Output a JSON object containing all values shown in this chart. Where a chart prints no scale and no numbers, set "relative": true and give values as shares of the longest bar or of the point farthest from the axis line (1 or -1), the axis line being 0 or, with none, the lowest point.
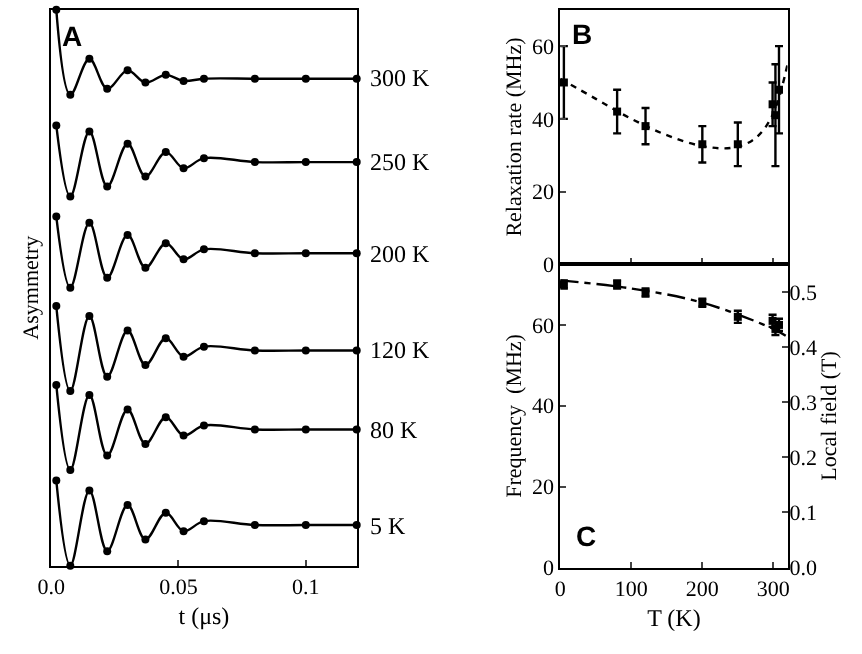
{
  "chart_data": [
    {
      "type": "line",
      "relative": true,
      "xlabel": "t (μs)",
      "ylabel": "Asymmetry",
      "annotations": [
        "A"
      ],
      "xlim": [
        0,
        0.12
      ],
      "xticks": [
        {
          "value": 0,
          "label": "0.0"
        },
        0.05,
        0.1
      ],
      "tick_labels": "x",
      "marker": "circle",
      "grid": false,
      "x": [
        0.002,
        0.0075,
        0.015,
        0.022,
        0.03,
        0.037,
        0.045,
        0.052,
        0.06,
        0.08,
        0.1,
        0.12
      ],
      "series": [
        {
          "name": "300 K",
          "color": "#000000",
          "values": [
            1.0,
            0.847,
            0.912,
            0.858,
            0.891,
            0.869,
            0.883,
            0.872,
            0.876,
            0.876,
            0.876,
            0.876
          ]
        },
        {
          "name": "250 K",
          "color": "#000000",
          "values": [
            0.792,
            0.664,
            0.781,
            0.682,
            0.759,
            0.7,
            0.744,
            0.715,
            0.733,
            0.726,
            0.726,
            0.726
          ]
        },
        {
          "name": "200 K",
          "color": "#000000",
          "values": [
            0.628,
            0.5,
            0.617,
            0.518,
            0.595,
            0.536,
            0.58,
            0.551,
            0.569,
            0.562,
            0.562,
            0.562
          ]
        },
        {
          "name": "120 K",
          "color": "#000000",
          "values": [
            0.467,
            0.314,
            0.449,
            0.34,
            0.423,
            0.361,
            0.409,
            0.376,
            0.394,
            0.387,
            0.387,
            0.387
          ]
        },
        {
          "name": "80 K",
          "color": "#000000",
          "values": [
            0.325,
            0.172,
            0.307,
            0.198,
            0.281,
            0.219,
            0.267,
            0.234,
            0.252,
            0.245,
            0.245,
            0.245
          ]
        },
        {
          "name": "5 K",
          "color": "#000000",
          "values": [
            0.153,
            0.0,
            0.135,
            0.026,
            0.109,
            0.047,
            0.095,
            0.062,
            0.08,
            0.073,
            0.073,
            0.073
          ]
        }
      ]
    },
    {
      "type": "scatter",
      "ylabel": "Relaxation rate (MHz)",
      "annotations": [
        "B"
      ],
      "xlim": [
        0,
        320
      ],
      "ylim": [
        0,
        70
      ],
      "yticks": [
        0,
        20,
        40,
        60
      ],
      "tick_labels": "y",
      "marker": "square",
      "grid": false,
      "series": [
        {
          "type": "scatter",
          "color": "#000000",
          "x": [
            5,
            80,
            120,
            200,
            250,
            299,
            303,
            308
          ],
          "values": [
            50,
            42,
            38,
            33,
            33,
            44,
            41,
            48
          ],
          "errors": [
            10,
            6,
            5,
            5,
            6,
            6,
            14,
            12
          ]
        },
        {
          "type": "line",
          "line_style": "dotted",
          "marker": "none",
          "color": "#000000",
          "x": [
            0,
            50,
            100,
            150,
            200,
            240,
            270,
            290,
            305,
            320
          ],
          "values": [
            51,
            45.5,
            40,
            35.5,
            32.5,
            32,
            34,
            38,
            44,
            55
          ]
        }
      ]
    },
    {
      "type": "scatter",
      "xlabel": "T (K)",
      "ylabel": "Frequency  (MHz)",
      "y2label": "Local field (T)",
      "annotations": [
        "C"
      ],
      "xlim": [
        0,
        320
      ],
      "xticks": [
        0,
        100,
        200,
        300
      ],
      "ylim": [
        0,
        75
      ],
      "yticks": [
        0,
        20,
        40,
        60
      ],
      "y2lim": [
        0,
        0.55
      ],
      "y2ticks": [
        {
          "value": 0,
          "label": "0.0"
        },
        0.1,
        0.2,
        0.3,
        0.4,
        0.5
      ],
      "marker": "square",
      "grid": false,
      "series": [
        {
          "type": "scatter",
          "color": "#000000",
          "x": [
            5,
            80,
            120,
            200,
            250,
            299,
            303,
            308
          ],
          "values": [
            70,
            70,
            68,
            65.5,
            62,
            61,
            59,
            60
          ],
          "errors": [
            1,
            1,
            1,
            1,
            1.5,
            1.5,
            1.5,
            1.5
          ]
        },
        {
          "type": "line",
          "line_style": "dashed",
          "marker": "none",
          "color": "#000000",
          "x": [
            0,
            100,
            200,
            300,
            320
          ],
          "values": [
            71,
            69,
            65.5,
            59,
            57
          ]
        }
      ]
    }
  ]
}
